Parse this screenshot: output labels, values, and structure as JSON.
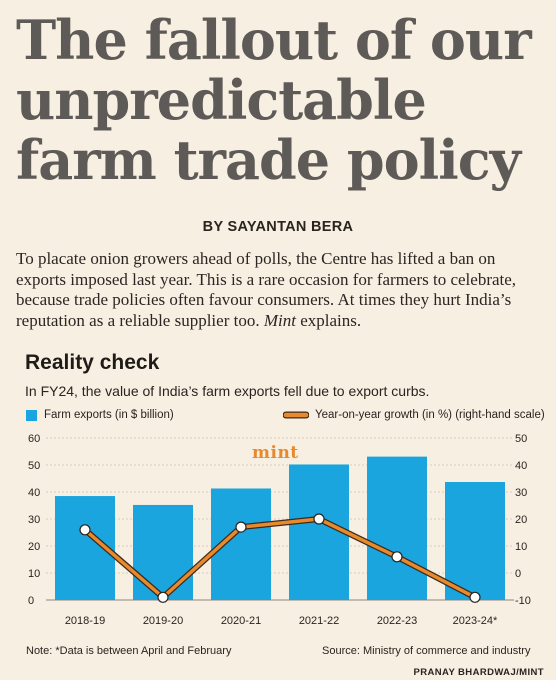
{
  "headline": "The fallout of our unpredictable farm trade policy",
  "byline": "BY SAYANTAN BERA",
  "intro": {
    "text_before": "To placate onion growers ahead of polls, the Centre has lifted a ban on exports imposed last year. This is a rare occasion for farmers to celebrate, because trade policies often favour consumers. At times they hurt India’s reputation as a reliable supplier too. ",
    "brand": "Mint",
    "text_after": " explains."
  },
  "section_title": "Reality check",
  "logo_text": "mint",
  "note": "Note: *Data is between April and February",
  "source": "Source: Ministry of commerce and industry",
  "credit": "PRANAY BHARDWAJ/MINT",
  "colors": {
    "bars": "#1aa5de",
    "line": "#e88a2c",
    "line_outline": "#3b2a1f",
    "background": "#f7efe1"
  },
  "chart_data": {
    "type": "bar+line",
    "title": "In FY24, the value of India’s farm exports fell due to export curbs.",
    "categories": [
      "2018-19",
      "2019-20",
      "2020-21",
      "2021-22",
      "2022-23",
      "2023-24*"
    ],
    "series": [
      {
        "name": "Farm exports (in $ billion)",
        "type": "bar",
        "axis": "left",
        "values": [
          38.5,
          35.2,
          41.3,
          50.2,
          53.1,
          43.7
        ]
      },
      {
        "name": "Year-on-year growth (in %) (right-hand scale)",
        "type": "line",
        "axis": "right",
        "values": [
          16,
          -9,
          17,
          20,
          6,
          -9
        ]
      }
    ],
    "y_left": {
      "lim": [
        0,
        60
      ],
      "ticks": [
        "0",
        "10",
        "20",
        "30",
        "40",
        "50",
        "60"
      ]
    },
    "y_right": {
      "lim": [
        -10,
        50
      ],
      "ticks": [
        "-10",
        "0",
        "10",
        "20",
        "30",
        "40",
        "50"
      ]
    },
    "grid": "horizontal",
    "legend": "top"
  }
}
